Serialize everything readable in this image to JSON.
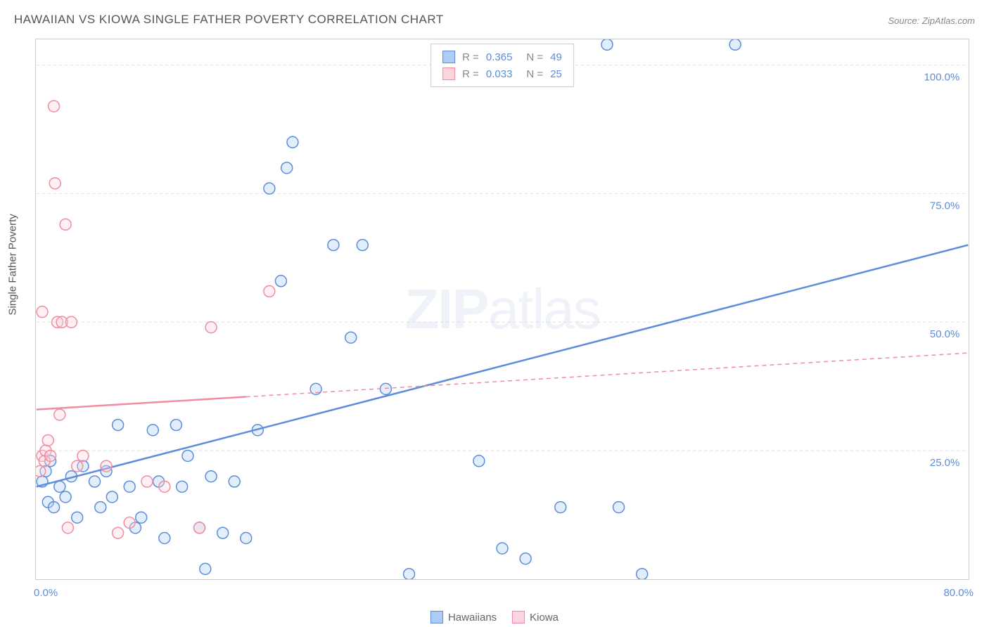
{
  "title": "HAWAIIAN VS KIOWA SINGLE FATHER POVERTY CORRELATION CHART",
  "source": "Source: ZipAtlas.com",
  "ylabel": "Single Father Poverty",
  "watermark_a": "ZIP",
  "watermark_b": "atlas",
  "chart": {
    "type": "scatter",
    "background_color": "#ffffff",
    "grid_color": "#dddddd",
    "border_color": "#cccccc",
    "xlim": [
      0,
      80
    ],
    "ylim": [
      0,
      105
    ],
    "xtick_positions": [
      0,
      10,
      20,
      30,
      40,
      50,
      60,
      70,
      80
    ],
    "xtick_labels": {
      "0": "0.0%",
      "80": "80.0%"
    },
    "ytick_positions": [
      25,
      50,
      75,
      100
    ],
    "ytick_labels": [
      "25.0%",
      "50.0%",
      "75.0%",
      "100.0%"
    ],
    "marker_radius": 8,
    "marker_fill_opacity": 0.35,
    "marker_stroke_width": 1.5,
    "trendline_width": 2.5,
    "tick_label_color": "#5b8ddb",
    "axis_label_color": "#555555",
    "series": [
      {
        "name": "Hawaiians",
        "color": "#5b8ddb",
        "fill": "#aecdf4",
        "r": "0.365",
        "n": "49",
        "trendline": {
          "x1": 0,
          "y1": 18,
          "x2": 80,
          "y2": 65,
          "dash_from_x": null
        },
        "points": [
          [
            0.5,
            19
          ],
          [
            0.8,
            21
          ],
          [
            1.0,
            15
          ],
          [
            1.2,
            23
          ],
          [
            1.5,
            14
          ],
          [
            2.0,
            18
          ],
          [
            2.5,
            16
          ],
          [
            3.0,
            20
          ],
          [
            3.5,
            12
          ],
          [
            4.0,
            22
          ],
          [
            5.0,
            19
          ],
          [
            5.5,
            14
          ],
          [
            6.0,
            21
          ],
          [
            6.5,
            16
          ],
          [
            7.0,
            30
          ],
          [
            8.0,
            18
          ],
          [
            8.5,
            10
          ],
          [
            9.0,
            12
          ],
          [
            10.0,
            29
          ],
          [
            10.5,
            19
          ],
          [
            11.0,
            8
          ],
          [
            12.0,
            30
          ],
          [
            12.5,
            18
          ],
          [
            13.0,
            24
          ],
          [
            14.0,
            10
          ],
          [
            14.5,
            2
          ],
          [
            15.0,
            20
          ],
          [
            16.0,
            9
          ],
          [
            17.0,
            19
          ],
          [
            18.0,
            8
          ],
          [
            19.0,
            29
          ],
          [
            20.0,
            76
          ],
          [
            21.0,
            58
          ],
          [
            21.5,
            80
          ],
          [
            22.0,
            85
          ],
          [
            24.0,
            37
          ],
          [
            25.5,
            65
          ],
          [
            27.0,
            47
          ],
          [
            28.0,
            65
          ],
          [
            30.0,
            37
          ],
          [
            32.0,
            1
          ],
          [
            38.0,
            23
          ],
          [
            40.0,
            6
          ],
          [
            42.0,
            4
          ],
          [
            45.0,
            14
          ],
          [
            49.0,
            104
          ],
          [
            50.0,
            14
          ],
          [
            52.0,
            1
          ],
          [
            60.0,
            104
          ]
        ]
      },
      {
        "name": "Kiowa",
        "color": "#f08ca0",
        "fill": "#fcd5de",
        "r": "0.033",
        "n": "25",
        "trendline": {
          "x1": 0,
          "y1": 33,
          "x2": 80,
          "y2": 44,
          "dash_from_x": 18
        },
        "points": [
          [
            0.3,
            21
          ],
          [
            0.5,
            24
          ],
          [
            0.7,
            23
          ],
          [
            0.8,
            25
          ],
          [
            1.0,
            27
          ],
          [
            1.2,
            24
          ],
          [
            1.5,
            92
          ],
          [
            1.6,
            77
          ],
          [
            1.8,
            50
          ],
          [
            2.0,
            32
          ],
          [
            2.2,
            50
          ],
          [
            2.5,
            69
          ],
          [
            2.7,
            10
          ],
          [
            3.0,
            50
          ],
          [
            0.5,
            52
          ],
          [
            3.5,
            22
          ],
          [
            4.0,
            24
          ],
          [
            6.0,
            22
          ],
          [
            7.0,
            9
          ],
          [
            8.0,
            11
          ],
          [
            9.5,
            19
          ],
          [
            11.0,
            18
          ],
          [
            14.0,
            10
          ],
          [
            15.0,
            49
          ],
          [
            20.0,
            56
          ]
        ]
      }
    ]
  },
  "legend_bottom": [
    {
      "label": "Hawaiians",
      "fill": "#aecdf4",
      "stroke": "#5b8ddb"
    },
    {
      "label": "Kiowa",
      "fill": "#fcd5de",
      "stroke": "#f08ca0"
    }
  ]
}
